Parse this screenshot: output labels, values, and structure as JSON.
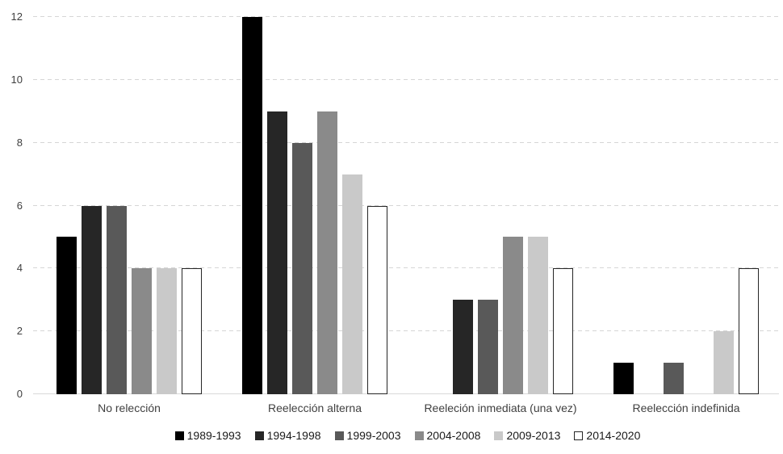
{
  "chart_data": {
    "type": "bar",
    "title": "",
    "xlabel": "",
    "ylabel": "",
    "categories": [
      "No relección",
      "Reelección alterna",
      "Reeleción inmediata (una vez)",
      "Reelección indefinida"
    ],
    "series": [
      {
        "name": "1989-1993",
        "color": "#000000",
        "border": "#000000",
        "values": [
          5,
          12,
          0,
          1
        ]
      },
      {
        "name": "1994-1998",
        "color": "#262626",
        "border": "#262626",
        "values": [
          6,
          9,
          3,
          0
        ]
      },
      {
        "name": "1999-2003",
        "color": "#595959",
        "border": "#595959",
        "values": [
          6,
          8,
          3,
          1
        ]
      },
      {
        "name": "2004-2008",
        "color": "#8a8a8a",
        "border": "#8a8a8a",
        "values": [
          4,
          9,
          5,
          0
        ]
      },
      {
        "name": "2009-2013",
        "color": "#c9c9c9",
        "border": "#c9c9c9",
        "values": [
          4,
          7,
          5,
          2
        ]
      },
      {
        "name": "2014-2020",
        "color": "#ffffff",
        "border": "#262626",
        "values": [
          4,
          6,
          4,
          4
        ]
      }
    ],
    "ylim": [
      0,
      12
    ],
    "yticks": [
      0,
      2,
      4,
      6,
      8,
      10,
      12
    ],
    "grid": "horizontal-dashed",
    "grid_color": "#d6d6d6",
    "axis_line_color": "#d9d9d9",
    "tick_label_color": "#404040",
    "legend_position": "bottom"
  }
}
